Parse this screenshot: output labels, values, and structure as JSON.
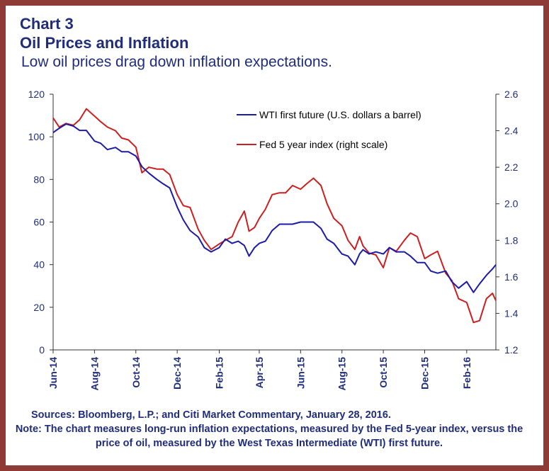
{
  "header": {
    "chart_label": "Chart 3",
    "title": "Oil Prices and Inflation",
    "subtitle": "Low oil prices drag down inflation expectations."
  },
  "footer": {
    "source": "Sources: Bloomberg, L.P.; and Citi Market Commentary, January 28, 2016.",
    "note": "Note: The chart measures long-run inflation expectations, measured by the Fed 5-year index, versus the price of oil, measured by the West Texas Intermediate (WTI) first future."
  },
  "colors": {
    "wti": "#1b1ba8",
    "fed": "#cc1f1f",
    "text": "#1f2d7a",
    "frame": "#8e3a36"
  },
  "chart_data": {
    "type": "line",
    "title": "Oil Prices and Inflation",
    "x_tick_labels": [
      "Jun-14",
      "Aug-14",
      "Oct-14",
      "Dec-14",
      "Feb-15",
      "Apr-15",
      "Jun-15",
      "Aug-15",
      "Oct-15",
      "Dec-15",
      "Feb-16"
    ],
    "x_tick_dates": [
      "2014-06-01",
      "2014-08-01",
      "2014-10-01",
      "2014-12-01",
      "2015-02-01",
      "2015-04-01",
      "2015-06-01",
      "2015-08-01",
      "2015-10-01",
      "2015-12-01",
      "2016-02-01"
    ],
    "x_range": [
      "2014-06-01",
      "2016-03-15"
    ],
    "y_left": {
      "min": 0,
      "max": 120,
      "ticks": [
        0,
        20,
        40,
        60,
        80,
        100,
        120
      ]
    },
    "y_right": {
      "min": 1.2,
      "max": 2.6,
      "ticks": [
        "1.2",
        "1.4",
        "1.6",
        "1.8",
        "2.0",
        "2.2",
        "2.4",
        "2.6"
      ]
    },
    "grid": false,
    "legend_position": "top-right",
    "series": [
      {
        "name": "WTI first future (U.S. dollars a barrel)",
        "axis": "left",
        "points": [
          [
            "2014-06-01",
            102
          ],
          [
            "2014-06-10",
            104
          ],
          [
            "2014-06-20",
            106
          ],
          [
            "2014-07-01",
            105
          ],
          [
            "2014-07-10",
            103
          ],
          [
            "2014-07-20",
            103
          ],
          [
            "2014-08-01",
            98
          ],
          [
            "2014-08-10",
            97
          ],
          [
            "2014-08-20",
            94
          ],
          [
            "2014-09-01",
            95
          ],
          [
            "2014-09-10",
            93
          ],
          [
            "2014-09-20",
            93
          ],
          [
            "2014-10-01",
            91
          ],
          [
            "2014-10-10",
            86
          ],
          [
            "2014-10-20",
            83
          ],
          [
            "2014-11-01",
            80
          ],
          [
            "2014-11-10",
            78
          ],
          [
            "2014-11-20",
            76
          ],
          [
            "2014-12-01",
            67
          ],
          [
            "2014-12-10",
            61
          ],
          [
            "2014-12-20",
            56
          ],
          [
            "2015-01-01",
            53
          ],
          [
            "2015-01-10",
            48
          ],
          [
            "2015-01-20",
            46
          ],
          [
            "2015-02-01",
            48
          ],
          [
            "2015-02-10",
            52
          ],
          [
            "2015-02-20",
            50
          ],
          [
            "2015-03-01",
            51
          ],
          [
            "2015-03-10",
            49
          ],
          [
            "2015-03-17",
            44
          ],
          [
            "2015-03-25",
            48
          ],
          [
            "2015-04-01",
            50
          ],
          [
            "2015-04-10",
            51
          ],
          [
            "2015-04-20",
            56
          ],
          [
            "2015-05-01",
            59
          ],
          [
            "2015-05-10",
            59
          ],
          [
            "2015-05-20",
            59
          ],
          [
            "2015-06-01",
            60
          ],
          [
            "2015-06-10",
            60
          ],
          [
            "2015-06-20",
            60
          ],
          [
            "2015-07-01",
            57
          ],
          [
            "2015-07-10",
            52
          ],
          [
            "2015-07-20",
            50
          ],
          [
            "2015-08-01",
            45
          ],
          [
            "2015-08-10",
            44
          ],
          [
            "2015-08-20",
            40
          ],
          [
            "2015-08-27",
            45
          ],
          [
            "2015-09-01",
            47
          ],
          [
            "2015-09-10",
            45
          ],
          [
            "2015-09-20",
            46
          ],
          [
            "2015-10-01",
            45
          ],
          [
            "2015-10-10",
            48
          ],
          [
            "2015-10-20",
            46
          ],
          [
            "2015-11-01",
            46
          ],
          [
            "2015-11-10",
            44
          ],
          [
            "2015-11-20",
            41
          ],
          [
            "2015-12-01",
            41
          ],
          [
            "2015-12-10",
            37
          ],
          [
            "2015-12-20",
            36
          ],
          [
            "2016-01-01",
            37
          ],
          [
            "2016-01-10",
            32
          ],
          [
            "2016-01-20",
            29
          ],
          [
            "2016-02-01",
            32
          ],
          [
            "2016-02-11",
            27
          ],
          [
            "2016-02-20",
            31
          ],
          [
            "2016-03-01",
            35
          ],
          [
            "2016-03-10",
            38
          ],
          [
            "2016-03-15",
            40
          ]
        ]
      },
      {
        "name": "Fed 5 year index (right scale)",
        "axis": "right",
        "points": [
          [
            "2014-06-01",
            2.47
          ],
          [
            "2014-06-10",
            2.42
          ],
          [
            "2014-06-20",
            2.44
          ],
          [
            "2014-07-01",
            2.43
          ],
          [
            "2014-07-10",
            2.46
          ],
          [
            "2014-07-20",
            2.52
          ],
          [
            "2014-08-01",
            2.48
          ],
          [
            "2014-08-10",
            2.45
          ],
          [
            "2014-08-20",
            2.42
          ],
          [
            "2014-09-01",
            2.4
          ],
          [
            "2014-09-10",
            2.36
          ],
          [
            "2014-09-20",
            2.35
          ],
          [
            "2014-10-01",
            2.31
          ],
          [
            "2014-10-10",
            2.17
          ],
          [
            "2014-10-20",
            2.2
          ],
          [
            "2014-11-01",
            2.19
          ],
          [
            "2014-11-10",
            2.19
          ],
          [
            "2014-11-20",
            2.16
          ],
          [
            "2014-12-01",
            2.05
          ],
          [
            "2014-12-10",
            1.99
          ],
          [
            "2014-12-20",
            1.98
          ],
          [
            "2015-01-01",
            1.86
          ],
          [
            "2015-01-10",
            1.8
          ],
          [
            "2015-01-20",
            1.75
          ],
          [
            "2015-02-01",
            1.78
          ],
          [
            "2015-02-10",
            1.8
          ],
          [
            "2015-02-20",
            1.82
          ],
          [
            "2015-03-01",
            1.9
          ],
          [
            "2015-03-10",
            1.96
          ],
          [
            "2015-03-17",
            1.85
          ],
          [
            "2015-03-25",
            1.87
          ],
          [
            "2015-04-01",
            1.92
          ],
          [
            "2015-04-10",
            1.97
          ],
          [
            "2015-04-20",
            2.05
          ],
          [
            "2015-05-01",
            2.06
          ],
          [
            "2015-05-10",
            2.06
          ],
          [
            "2015-05-20",
            2.1
          ],
          [
            "2015-06-01",
            2.08
          ],
          [
            "2015-06-10",
            2.11
          ],
          [
            "2015-06-20",
            2.14
          ],
          [
            "2015-07-01",
            2.1
          ],
          [
            "2015-07-10",
            2.0
          ],
          [
            "2015-07-20",
            1.92
          ],
          [
            "2015-08-01",
            1.88
          ],
          [
            "2015-08-10",
            1.8
          ],
          [
            "2015-08-20",
            1.75
          ],
          [
            "2015-08-27",
            1.82
          ],
          [
            "2015-09-01",
            1.77
          ],
          [
            "2015-09-10",
            1.73
          ],
          [
            "2015-09-20",
            1.72
          ],
          [
            "2015-10-01",
            1.65
          ],
          [
            "2015-10-10",
            1.76
          ],
          [
            "2015-10-20",
            1.74
          ],
          [
            "2015-11-01",
            1.8
          ],
          [
            "2015-11-10",
            1.84
          ],
          [
            "2015-11-20",
            1.82
          ],
          [
            "2015-12-01",
            1.7
          ],
          [
            "2015-12-10",
            1.72
          ],
          [
            "2015-12-20",
            1.74
          ],
          [
            "2016-01-01",
            1.62
          ],
          [
            "2016-01-10",
            1.58
          ],
          [
            "2016-01-20",
            1.48
          ],
          [
            "2016-02-01",
            1.46
          ],
          [
            "2016-02-11",
            1.35
          ],
          [
            "2016-02-20",
            1.36
          ],
          [
            "2016-03-01",
            1.48
          ],
          [
            "2016-03-10",
            1.51
          ],
          [
            "2016-03-15",
            1.47
          ]
        ]
      }
    ]
  }
}
